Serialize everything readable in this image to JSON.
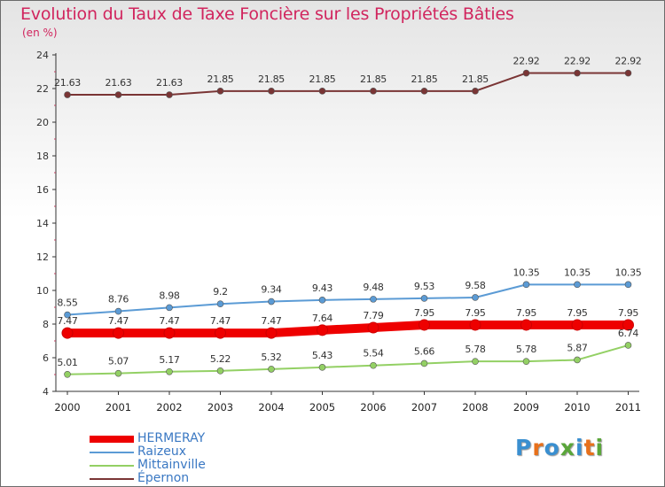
{
  "title": "Evolution du Taux de Taxe Foncière sur les Propriétés Bâties",
  "subtitle": "(en %)",
  "brand": {
    "letters": [
      "P",
      "r",
      "o",
      "x",
      "i",
      "t",
      "i"
    ],
    "colors": [
      "#3a8fd0",
      "#e8701a",
      "#3a8fd0",
      "#5aa63a",
      "#3a8fd0",
      "#e8701a",
      "#5aa63a"
    ]
  },
  "chart_data": {
    "type": "line",
    "x": [
      "2000",
      "2001",
      "2002",
      "2003",
      "2004",
      "2005",
      "2006",
      "2007",
      "2008",
      "2009",
      "2010",
      "2011"
    ],
    "ylim": [
      4,
      24
    ],
    "yticks": [
      4,
      6,
      8,
      10,
      12,
      14,
      16,
      18,
      20,
      22,
      24
    ],
    "grid": false,
    "legend_position": "bottom-left",
    "series": [
      {
        "name": "HERMERAY",
        "color": "#ee0000",
        "values": [
          7.47,
          7.47,
          7.47,
          7.47,
          7.47,
          7.64,
          7.79,
          7.95,
          7.95,
          7.95,
          7.95,
          7.95
        ],
        "labels": [
          "7.47",
          "7.47",
          "7.47",
          "7.47",
          "7.47",
          "7.64",
          "7.79",
          "7.95",
          "7.95",
          "7.95",
          "7.95",
          "7.95"
        ]
      },
      {
        "name": "Raizeux",
        "color": "#5b9bd5",
        "values": [
          8.55,
          8.76,
          8.98,
          9.2,
          9.34,
          9.43,
          9.48,
          9.53,
          9.58,
          10.35,
          10.35,
          10.35
        ],
        "labels": [
          "8.55",
          "8.76",
          "8.98",
          "9.2",
          "9.34",
          "9.43",
          "9.48",
          "9.53",
          "9.58",
          "10.35",
          "10.35",
          "10.35"
        ]
      },
      {
        "name": "Mittainville",
        "color": "#93d064",
        "values": [
          5.01,
          5.07,
          5.17,
          5.22,
          5.32,
          5.43,
          5.54,
          5.66,
          5.78,
          5.78,
          5.87,
          6.74
        ],
        "labels": [
          "5.01",
          "5.07",
          "5.17",
          "5.22",
          "5.32",
          "5.43",
          "5.54",
          "5.66",
          "5.78",
          "5.78",
          "5.87",
          "6.74"
        ]
      },
      {
        "name": "Épernon",
        "color": "#7a3535",
        "values": [
          21.63,
          21.63,
          21.63,
          21.85,
          21.85,
          21.85,
          21.85,
          21.85,
          21.85,
          22.92,
          22.92,
          22.92
        ],
        "labels": [
          "21.63",
          "21.63",
          "21.63",
          "21.85",
          "21.85",
          "21.85",
          "21.85",
          "21.85",
          "21.85",
          "22.92",
          "22.92",
          "22.92"
        ]
      }
    ]
  }
}
